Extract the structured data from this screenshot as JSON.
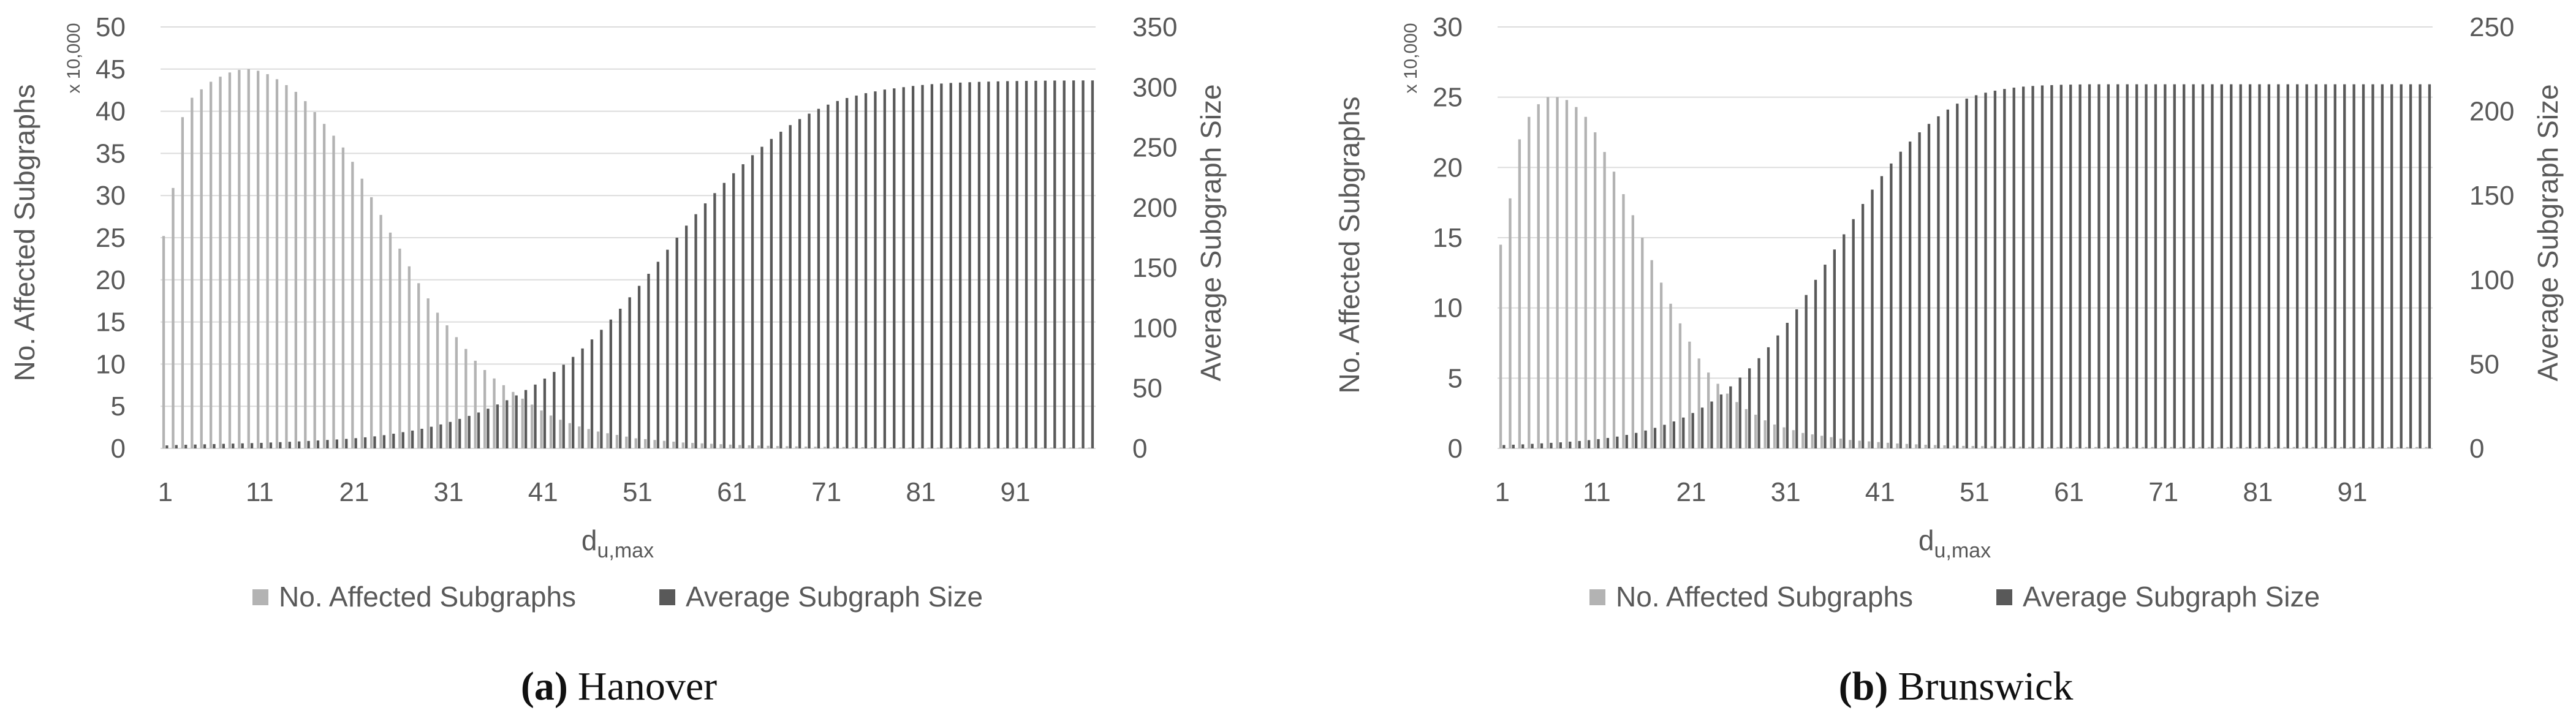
{
  "colors": {
    "affected": "#b3b3b3",
    "average": "#595959",
    "grid": "#dcdcdc",
    "axis": "#bfbfbf"
  },
  "chart_data": [
    {
      "type": "bar",
      "caption_letter": "(a)",
      "caption_name": "Hanover",
      "xlabel": "d",
      "xlabel_sub": "u,max",
      "ylabel_left": "No. Affected Subgraphs",
      "ylabel_left_scale": "x 10,000",
      "ylabel_right": "Average Subgraph Size",
      "ylim_left": [
        0,
        50
      ],
      "ylim_right": [
        0,
        350
      ],
      "yticks_left": [
        "0",
        "5",
        "10",
        "15",
        "20",
        "25",
        "30",
        "35",
        "40",
        "45",
        "50"
      ],
      "yticks_right": [
        "0",
        "50",
        "100",
        "150",
        "200",
        "250",
        "300",
        "350"
      ],
      "xticks": [
        "1",
        "11",
        "21",
        "31",
        "41",
        "51",
        "61",
        "71",
        "81",
        "91"
      ],
      "grid": true,
      "legend_position": "bottom",
      "x_start": 1,
      "series": [
        {
          "name": "No. Affected Subgraphs",
          "axis": "left",
          "values": [
            25.2,
            30.9,
            39.3,
            41.6,
            42.6,
            43.5,
            44.1,
            44.6,
            44.9,
            45.0,
            44.8,
            44.4,
            43.8,
            43.1,
            42.3,
            41.2,
            39.9,
            38.5,
            37.1,
            35.7,
            34.0,
            32.0,
            29.8,
            27.7,
            25.6,
            23.7,
            21.6,
            19.6,
            17.8,
            16.1,
            14.6,
            13.2,
            11.8,
            10.4,
            9.3,
            8.3,
            7.5,
            6.7,
            5.9,
            5.2,
            4.5,
            3.9,
            3.4,
            3.0,
            2.6,
            2.3,
            2.0,
            1.8,
            1.6,
            1.4,
            1.2,
            1.1,
            1.0,
            0.9,
            0.8,
            0.7,
            0.65,
            0.6,
            0.55,
            0.5,
            0.45,
            0.4,
            0.37,
            0.34,
            0.31,
            0.28,
            0.26,
            0.24,
            0.22,
            0.2,
            0.19,
            0.18,
            0.17,
            0.16,
            0.15,
            0.14,
            0.13,
            0.12,
            0.11,
            0.1,
            0.1,
            0.1,
            0.1,
            0.1,
            0.1,
            0.1,
            0.1,
            0.1,
            0.1,
            0.1,
            0.1,
            0.1,
            0.1,
            0.1,
            0.1,
            0.1,
            0.1,
            0.1,
            0.1
          ]
        },
        {
          "name": "Average Subgraph Size",
          "axis": "right",
          "values": [
            2.5,
            2.8,
            3.0,
            3.2,
            3.4,
            3.6,
            3.8,
            4.0,
            4.2,
            4.4,
            4.6,
            4.9,
            5.2,
            5.5,
            5.8,
            6.2,
            6.6,
            7.0,
            7.4,
            7.9,
            8.5,
            9.2,
            10.0,
            11.0,
            12.2,
            13.5,
            14.8,
            16.3,
            18.0,
            19.9,
            22.0,
            24.5,
            27.0,
            29.8,
            33.0,
            36.5,
            40.0,
            44.0,
            48.5,
            53.0,
            58.0,
            63.5,
            69.5,
            76.0,
            83.0,
            90.5,
            98.5,
            107.0,
            116.0,
            125.5,
            135.0,
            145.0,
            155.0,
            165.0,
            175.0,
            185.0,
            194.5,
            203.5,
            212.0,
            220.5,
            228.5,
            236.0,
            243.5,
            250.5,
            257.0,
            263.0,
            268.5,
            273.5,
            278.0,
            282.0,
            285.5,
            288.5,
            291.0,
            293.0,
            295.0,
            296.5,
            298.0,
            299.0,
            300.0,
            301.0,
            301.8,
            302.5,
            303.0,
            303.5,
            303.8,
            304.1,
            304.4,
            304.6,
            304.8,
            305.0,
            305.1,
            305.2,
            305.3,
            305.4,
            305.5,
            305.5,
            305.6,
            305.6,
            305.6
          ]
        }
      ]
    },
    {
      "type": "bar",
      "caption_letter": "(b)",
      "caption_name": "Brunswick",
      "xlabel": "d",
      "xlabel_sub": "u,max",
      "ylabel_left": "No. Affected Subgraphs",
      "ylabel_left_scale": "x 10,000",
      "ylabel_right": "Average Subgraph Size",
      "ylim_left": [
        0,
        30
      ],
      "ylim_right": [
        0,
        250
      ],
      "yticks_left": [
        "0",
        "5",
        "10",
        "15",
        "20",
        "25",
        "30"
      ],
      "yticks_right": [
        "0",
        "50",
        "100",
        "150",
        "200",
        "250"
      ],
      "xticks": [
        "1",
        "11",
        "21",
        "31",
        "41",
        "51",
        "61",
        "71",
        "81",
        "91"
      ],
      "grid": true,
      "legend_position": "bottom",
      "x_start": 1,
      "series": [
        {
          "name": "No. Affected Subgraphs",
          "axis": "left",
          "values": [
            14.5,
            17.8,
            22.0,
            23.6,
            24.5,
            25.0,
            25.0,
            24.8,
            24.3,
            23.6,
            22.5,
            21.1,
            19.7,
            18.1,
            16.6,
            15.0,
            13.4,
            11.8,
            10.3,
            8.9,
            7.6,
            6.4,
            5.4,
            4.6,
            3.9,
            3.3,
            2.8,
            2.4,
            2.0,
            1.7,
            1.5,
            1.3,
            1.1,
            1.0,
            0.9,
            0.8,
            0.7,
            0.6,
            0.55,
            0.5,
            0.45,
            0.4,
            0.35,
            0.32,
            0.29,
            0.26,
            0.24,
            0.22,
            0.2,
            0.18,
            0.17,
            0.16,
            0.15,
            0.14,
            0.13,
            0.12,
            0.11,
            0.1,
            0.1,
            0.1,
            0.1,
            0.1,
            0.1,
            0.1,
            0.1,
            0.1,
            0.1,
            0.1,
            0.1,
            0.1,
            0.1,
            0.1,
            0.1,
            0.1,
            0.1,
            0.1,
            0.1,
            0.1,
            0.1,
            0.1,
            0.1,
            0.1,
            0.1,
            0.1,
            0.1,
            0.1,
            0.1,
            0.1,
            0.1,
            0.1,
            0.1,
            0.1,
            0.1,
            0.1,
            0.1,
            0.1,
            0.1,
            0.1,
            0.1
          ]
        },
        {
          "name": "Average Subgraph Size",
          "axis": "right",
          "values": [
            2.0,
            2.2,
            2.4,
            2.7,
            3.0,
            3.3,
            3.6,
            4.0,
            4.4,
            4.9,
            5.5,
            6.2,
            7.0,
            8.0,
            9.2,
            10.6,
            12.2,
            14.0,
            16.0,
            18.3,
            21.0,
            24.2,
            27.8,
            32.0,
            36.8,
            42.0,
            47.5,
            53.5,
            60.0,
            67.0,
            74.5,
            82.5,
            91.0,
            100.0,
            109.0,
            118.0,
            127.0,
            136.0,
            145.0,
            153.5,
            161.5,
            169.0,
            176.0,
            182.0,
            187.5,
            192.5,
            197.0,
            201.0,
            204.5,
            207.5,
            209.5,
            211.0,
            212.2,
            213.2,
            214.0,
            214.6,
            215.0,
            215.3,
            215.5,
            215.7,
            215.8,
            215.9,
            216.0,
            216.0,
            216.0,
            216.0,
            216.0,
            216.0,
            216.0,
            216.0,
            216.0,
            216.0,
            216.0,
            216.0,
            216.0,
            216.0,
            216.0,
            216.0,
            216.0,
            216.0,
            216.0,
            216.0,
            216.0,
            216.0,
            216.0,
            216.0,
            216.0,
            216.0,
            216.0,
            216.0,
            216.0,
            216.0,
            216.0,
            216.0,
            216.0,
            216.0,
            216.0,
            216.0,
            216.0
          ]
        }
      ]
    }
  ]
}
